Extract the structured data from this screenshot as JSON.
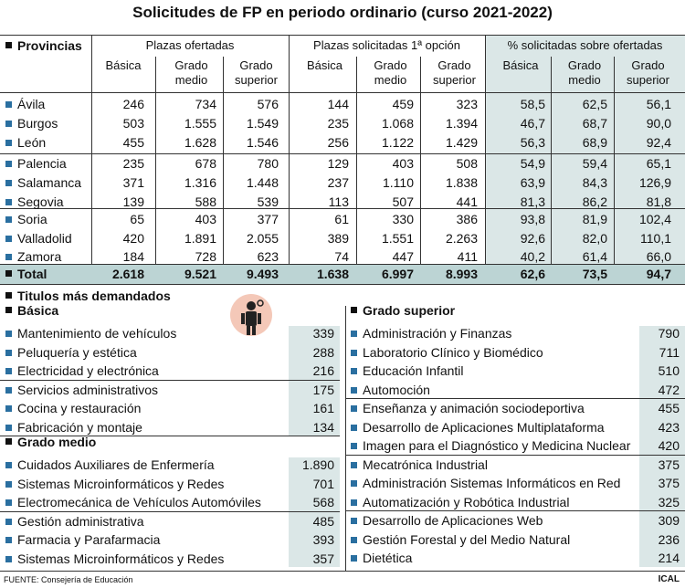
{
  "title": "Solicitudes de FP en periodo ordinario (curso 2021-2022)",
  "header": {
    "provinces_label": "Provincias",
    "group1": "Plazas ofertadas",
    "group2": "Plazas solicitadas 1ª opción",
    "group3": "% solicitadas sobre ofertadas",
    "sub": [
      "Básica",
      "Grado medio",
      "Grado superior",
      "Básica",
      "Grado medio",
      "Grado superior",
      "Básica",
      "Grado medio",
      "Grado superior"
    ]
  },
  "rows": [
    {
      "name": "Ávila",
      "v": [
        "246",
        "734",
        "576",
        "144",
        "459",
        "323",
        "58,5",
        "62,5",
        "56,1"
      ]
    },
    {
      "name": "Burgos",
      "v": [
        "503",
        "1.555",
        "1.549",
        "235",
        "1.068",
        "1.394",
        "46,7",
        "68,7",
        "90,0"
      ]
    },
    {
      "name": "León",
      "v": [
        "455",
        "1.628",
        "1.546",
        "256",
        "1.122",
        "1.429",
        "56,3",
        "68,9",
        "92,4"
      ]
    },
    {
      "name": "Palencia",
      "v": [
        "235",
        "678",
        "780",
        "129",
        "403",
        "508",
        "54,9",
        "59,4",
        "65,1"
      ]
    },
    {
      "name": "Salamanca",
      "v": [
        "371",
        "1.316",
        "1.448",
        "237",
        "1.110",
        "1.838",
        "63,9",
        "84,3",
        "126,9"
      ]
    },
    {
      "name": "Segovia",
      "v": [
        "139",
        "588",
        "539",
        "113",
        "507",
        "441",
        "81,3",
        "86,2",
        "81,8"
      ]
    },
    {
      "name": "Soria",
      "v": [
        "65",
        "403",
        "377",
        "61",
        "330",
        "386",
        "93,8",
        "81,9",
        "102,4"
      ]
    },
    {
      "name": "Valladolid",
      "v": [
        "420",
        "1.891",
        "2.055",
        "389",
        "1.551",
        "2.263",
        "92,6",
        "82,0",
        "110,1"
      ]
    },
    {
      "name": "Zamora",
      "v": [
        "184",
        "728",
        "623",
        "74",
        "447",
        "411",
        "40,2",
        "61,4",
        "66,0"
      ]
    }
  ],
  "total": {
    "name": "Total",
    "v": [
      "2.618",
      "9.521",
      "9.493",
      "1.638",
      "6.997",
      "8.993",
      "62,6",
      "73,5",
      "94,7"
    ]
  },
  "titulos_heading": "Titulos más demandados",
  "basica": {
    "heading": "Básica",
    "items": [
      {
        "name": "Mantenimiento de vehículos",
        "value": "339"
      },
      {
        "name": "Peluquería y estética",
        "value": "288"
      },
      {
        "name": "Electricidad y electrónica",
        "value": "216"
      },
      {
        "name": "Servicios administrativos",
        "value": "175"
      },
      {
        "name": "Cocina y restauración",
        "value": "161"
      },
      {
        "name": "Fabricación y montaje",
        "value": "134"
      }
    ]
  },
  "medio": {
    "heading": "Grado medio",
    "items": [
      {
        "name": "Cuidados Auxiliares de Enfermería",
        "value": "1.890"
      },
      {
        "name": "Sistemas Microinformáticos y Redes",
        "value": "701"
      },
      {
        "name": "Electromecánica de Vehículos Automóviles",
        "value": "568"
      },
      {
        "name": "Gestión administrativa",
        "value": "485"
      },
      {
        "name": "Farmacia y Parafarmacia",
        "value": "393"
      },
      {
        "name": "Sistemas Microinformáticos y Redes",
        "value": "357"
      }
    ]
  },
  "superior": {
    "heading": "Grado superior",
    "items": [
      {
        "name": "Administración y Finanzas",
        "value": "790"
      },
      {
        "name": "Laboratorio Clínico y Biomédico",
        "value": "711"
      },
      {
        "name": "Educación Infantil",
        "value": "510"
      },
      {
        "name": "Automoción",
        "value": "472"
      },
      {
        "name": "Enseñanza y animación sociodeportiva",
        "value": "455"
      },
      {
        "name": "Desarrollo de Aplicaciones Multiplataforma",
        "value": "423"
      },
      {
        "name": "Imagen para el Diagnóstico y Medicina Nuclear",
        "value": "420"
      },
      {
        "name": "Mecatrónica Industrial",
        "value": "375"
      },
      {
        "name": "Administración Sistemas Informáticos en Red",
        "value": "375"
      },
      {
        "name": "Automatización y Robótica Industrial",
        "value": "325"
      },
      {
        "name": "Desarrollo de Aplicaciones Web",
        "value": "309"
      },
      {
        "name": "Gestión Forestal y del Medio Natural",
        "value": "236"
      },
      {
        "name": "Dietética",
        "value": "214"
      }
    ]
  },
  "source": "FUENTE: Consejería de Educación",
  "brand": "ICAL",
  "colors": {
    "shade": "#dbe7e7",
    "bullet": "#2a6fa0",
    "total_row": "#bcd4d4"
  }
}
